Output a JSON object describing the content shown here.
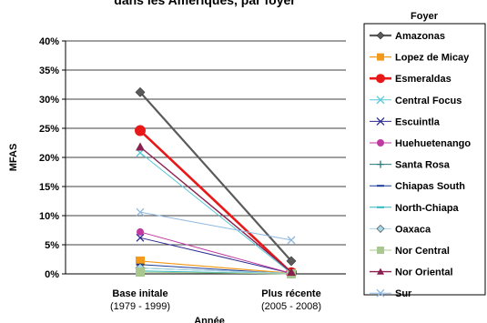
{
  "chart_data": {
    "type": "line",
    "title": "dans les Amériques, par foyer",
    "ylabel": "MFAS",
    "xlabel": "Année",
    "ylim": [
      0,
      40
    ],
    "y_ticks": [
      "0%",
      "5%",
      "10%",
      "15%",
      "20%",
      "25%",
      "30%",
      "35%",
      "40%"
    ],
    "categories": [
      {
        "label": "Base initale",
        "sub": "(1979 - 1999)"
      },
      {
        "label": "Plus récente",
        "sub": "(2005 - 2008)"
      }
    ],
    "legend_title": "Foyer",
    "legend_position": "right",
    "grid": "horizontal",
    "series": [
      {
        "name": "Amazonas",
        "values": [
          31.2,
          2.2
        ],
        "color": "#5a5a5a",
        "marker": "diamond",
        "width": 2.2
      },
      {
        "name": "Lopez de Micay",
        "values": [
          2.2,
          0.1
        ],
        "color": "#f39a1c",
        "marker": "square",
        "width": 1.2
      },
      {
        "name": "Esmeraldas",
        "values": [
          24.6,
          0.2
        ],
        "color": "#e81818",
        "marker": "circle",
        "width": 2.6
      },
      {
        "name": "Central Focus",
        "values": [
          20.8,
          0.1
        ],
        "color": "#55c8d8",
        "marker": "x",
        "width": 1
      },
      {
        "name": "Escuintla",
        "values": [
          6.2,
          0.1
        ],
        "color": "#2a2a90",
        "marker": "x",
        "width": 1
      },
      {
        "name": "Huehuetenango",
        "values": [
          7.2,
          0.1
        ],
        "color": "#c03aa0",
        "marker": "circle",
        "width": 1
      },
      {
        "name": "Santa Rosa",
        "values": [
          1.0,
          0.1
        ],
        "color": "#2a7a7a",
        "marker": "plus",
        "width": 1
      },
      {
        "name": "Chiapas South",
        "values": [
          1.6,
          0.0
        ],
        "color": "#1a3a9a",
        "marker": "dash",
        "width": 1
      },
      {
        "name": "North-Chiapa",
        "values": [
          0.5,
          0.0
        ],
        "color": "#30b8c0",
        "marker": "dash",
        "width": 1
      },
      {
        "name": "Oaxaca",
        "values": [
          1.0,
          0.1
        ],
        "color": "#a8d8e8",
        "marker": "diamond",
        "width": 1
      },
      {
        "name": "Nor Central",
        "values": [
          0.3,
          0.0
        ],
        "color": "#a8c890",
        "marker": "square",
        "width": 1
      },
      {
        "name": "Nor Oriental",
        "values": [
          21.8,
          0.3
        ],
        "color": "#8a2050",
        "marker": "triangle",
        "width": 1.4
      },
      {
        "name": "Sur",
        "values": [
          10.6,
          5.8
        ],
        "color": "#90b8e0",
        "marker": "x",
        "width": 1
      }
    ]
  }
}
